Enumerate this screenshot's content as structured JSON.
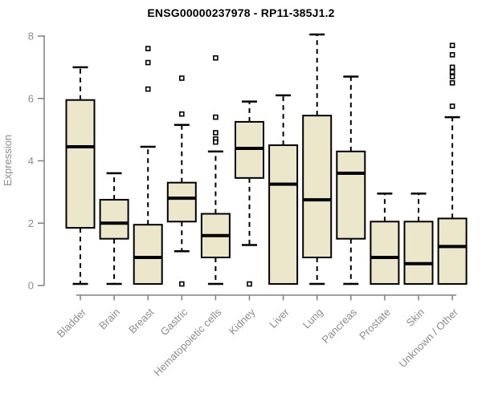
{
  "chart_data": {
    "type": "boxplot",
    "title": "ENSG00000237978 - RP11-385J1.2",
    "xlabel": "",
    "ylabel": "Expression",
    "ylim": [
      0,
      8
    ],
    "yticks": [
      0,
      2,
      4,
      6,
      8
    ],
    "grid": false,
    "legend": "none",
    "categories": [
      "Bladder",
      "Brain",
      "Breast",
      "Gastric",
      "Hematopoietic cells",
      "Kidney",
      "Liver",
      "Lung",
      "Pancreas",
      "Prostate",
      "Skin",
      "Unknown / Other"
    ],
    "series": [
      {
        "name": "Bladder",
        "whisker_low": 0.05,
        "q1": 1.85,
        "median": 4.45,
        "q3": 5.95,
        "whisker_high": 7.0,
        "outliers": []
      },
      {
        "name": "Brain",
        "whisker_low": 0.05,
        "q1": 1.5,
        "median": 2.0,
        "q3": 2.75,
        "whisker_high": 3.6,
        "outliers": []
      },
      {
        "name": "Breast",
        "whisker_low": 0.05,
        "q1": 0.05,
        "median": 0.9,
        "q3": 1.95,
        "whisker_high": 4.45,
        "outliers": [
          7.6,
          7.15,
          6.3
        ]
      },
      {
        "name": "Gastric",
        "whisker_low": 1.1,
        "q1": 2.05,
        "median": 2.8,
        "q3": 3.3,
        "whisker_high": 5.15,
        "outliers": [
          6.65,
          5.5,
          0.05
        ]
      },
      {
        "name": "Hematopoietic cells",
        "whisker_low": 0.05,
        "q1": 0.9,
        "median": 1.6,
        "q3": 2.3,
        "whisker_high": 4.3,
        "outliers": [
          7.3,
          5.4,
          4.9,
          4.7,
          4.6
        ]
      },
      {
        "name": "Kidney",
        "whisker_low": 1.3,
        "q1": 3.45,
        "median": 4.4,
        "q3": 5.25,
        "whisker_high": 5.9,
        "outliers": [
          0.05
        ]
      },
      {
        "name": "Liver",
        "whisker_low": 0.05,
        "q1": 0.05,
        "median": 3.25,
        "q3": 4.5,
        "whisker_high": 6.1,
        "outliers": []
      },
      {
        "name": "Lung",
        "whisker_low": 0.05,
        "q1": 0.9,
        "median": 2.75,
        "q3": 5.45,
        "whisker_high": 8.05,
        "outliers": []
      },
      {
        "name": "Pancreas",
        "whisker_low": 0.05,
        "q1": 1.5,
        "median": 3.6,
        "q3": 4.3,
        "whisker_high": 6.7,
        "outliers": []
      },
      {
        "name": "Prostate",
        "whisker_low": 0.05,
        "q1": 0.05,
        "median": 0.9,
        "q3": 2.05,
        "whisker_high": 2.95,
        "outliers": []
      },
      {
        "name": "Skin",
        "whisker_low": 0.05,
        "q1": 0.05,
        "median": 0.7,
        "q3": 2.05,
        "whisker_high": 2.95,
        "outliers": []
      },
      {
        "name": "Unknown / Other",
        "whisker_low": 0.05,
        "q1": 0.05,
        "median": 1.25,
        "q3": 2.15,
        "whisker_high": 5.4,
        "outliers": [
          7.7,
          7.4,
          7.0,
          6.85,
          6.7,
          6.5,
          5.75
        ]
      }
    ]
  },
  "colors": {
    "box_fill": "#ECE7CB",
    "box_stroke": "#000000",
    "median": "#000000",
    "whisker": "#000000",
    "outlier_stroke": "#000000",
    "outlier_fill": "#ffffff",
    "axis_line": "#808080",
    "axis_text": "#8c8c8c",
    "title": "#000000",
    "background": "#ffffff"
  }
}
